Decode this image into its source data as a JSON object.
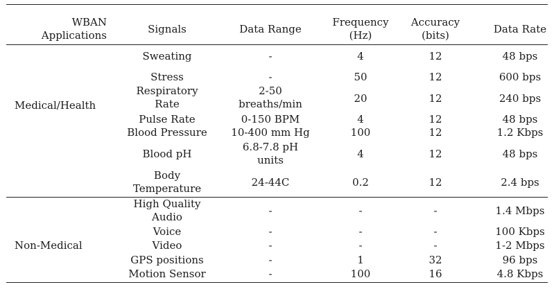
{
  "table": {
    "headers": {
      "applications": [
        "WBAN",
        "Applications"
      ],
      "signals": "Signals",
      "data_range": "Data Range",
      "frequency": [
        "Frequency",
        "(Hz)"
      ],
      "accuracy": [
        "Accuracy",
        "(bits)"
      ],
      "data_rate": "Data Rate"
    },
    "groups": [
      {
        "name": "Medical/Health",
        "rows": [
          {
            "signal": [
              "Sweating"
            ],
            "range": [
              "-"
            ],
            "freq": "4",
            "acc": "12",
            "rate": "48 bps"
          },
          {
            "signal": [
              "Stress"
            ],
            "range": [
              "-"
            ],
            "freq": "50",
            "acc": "12",
            "rate": "600 bps"
          },
          {
            "signal": [
              "Respiratory",
              "Rate"
            ],
            "range": [
              "2-50",
              "breaths/min"
            ],
            "freq": "20",
            "acc": "12",
            "rate": "240 bps"
          },
          {
            "signal": [
              "Pulse Rate"
            ],
            "range": [
              "0-150 BPM"
            ],
            "freq": "4",
            "acc": "12",
            "rate": "48 bps"
          },
          {
            "signal": [
              "Blood Pressure"
            ],
            "range": [
              "10-400 mm Hg"
            ],
            "freq": "100",
            "acc": "12",
            "rate": "1.2 Kbps"
          },
          {
            "signal": [
              "Blood pH"
            ],
            "range": [
              "6.8-7.8 pH",
              "units"
            ],
            "freq": "4",
            "acc": "12",
            "rate": "48 bps"
          },
          {
            "signal": [
              "Body",
              "Temperature"
            ],
            "range": [
              "24-44C"
            ],
            "freq": "0.2",
            "acc": "12",
            "rate": "2.4 bps"
          }
        ]
      },
      {
        "name": "Non-Medical",
        "rows": [
          {
            "signal": [
              "High Quality",
              "Audio"
            ],
            "range": [
              "-"
            ],
            "freq": "-",
            "acc": "-",
            "rate": "1.4 Mbps"
          },
          {
            "signal": [
              "Voice"
            ],
            "range": [
              "-"
            ],
            "freq": "-",
            "acc": "-",
            "rate": "100 Kbps"
          },
          {
            "signal": [
              "Video"
            ],
            "range": [
              "-"
            ],
            "freq": "-",
            "acc": "-",
            "rate": "1-2 Mbps"
          },
          {
            "signal": [
              "GPS positions"
            ],
            "range": [
              "-"
            ],
            "freq": "1",
            "acc": "32",
            "rate": "96 bps"
          },
          {
            "signal": [
              "Motion Sensor"
            ],
            "range": [
              "-"
            ],
            "freq": "100",
            "acc": "16",
            "rate": "4.8 Kbps"
          }
        ]
      }
    ]
  }
}
